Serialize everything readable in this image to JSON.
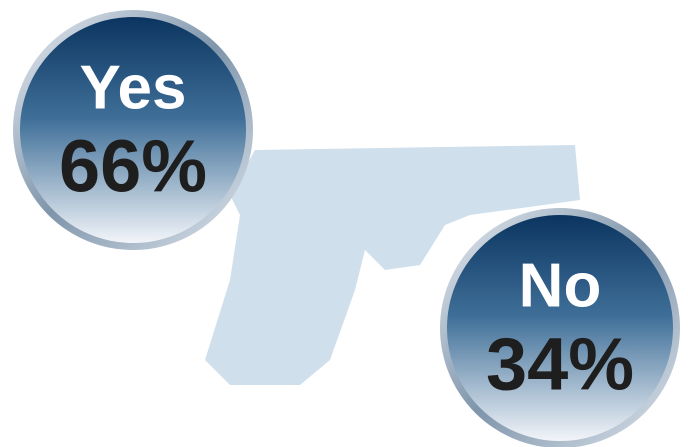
{
  "answers": [
    {
      "label": "Yes",
      "percent": "66%"
    },
    {
      "label": "No",
      "percent": "34%"
    }
  ]
}
